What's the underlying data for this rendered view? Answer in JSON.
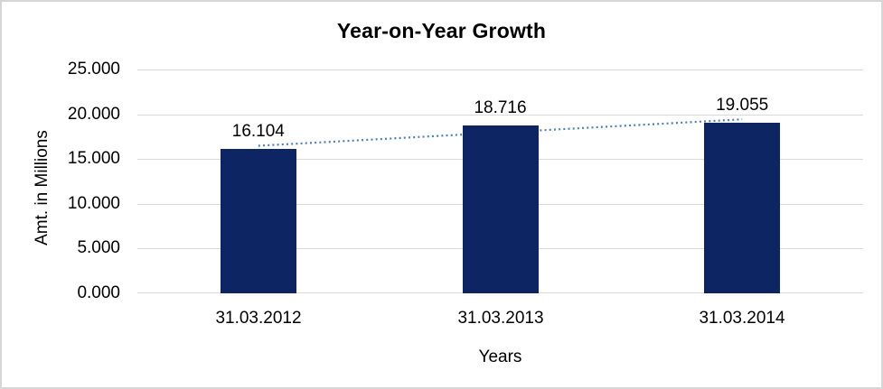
{
  "chart_data": {
    "type": "bar",
    "title": "Year-on-Year Growth",
    "xlabel": "Years",
    "ylabel": "Amt. in Millions",
    "categories": [
      "31.03.2012",
      "31.03.2013",
      "31.03.2014"
    ],
    "values": [
      16.104,
      18.716,
      19.055
    ],
    "value_labels": [
      "16.104",
      "18.716",
      "19.055"
    ],
    "ylim": [
      0,
      25
    ],
    "yticks": [
      0,
      5,
      10,
      15,
      20,
      25
    ],
    "ytick_labels": [
      "0.000",
      "5.000",
      "10.000",
      "15.000",
      "20.000",
      "25.000"
    ],
    "grid": "horizontal",
    "legend": "none",
    "trendline": {
      "type": "linear",
      "style": "dotted"
    },
    "colors": {
      "bar": "#0e2563",
      "trendline": "#4d7ebf",
      "gridline": "#d9d9d9",
      "text": "#000000",
      "frame_border": "#d6d6d6",
      "background": "#ffffff"
    }
  }
}
